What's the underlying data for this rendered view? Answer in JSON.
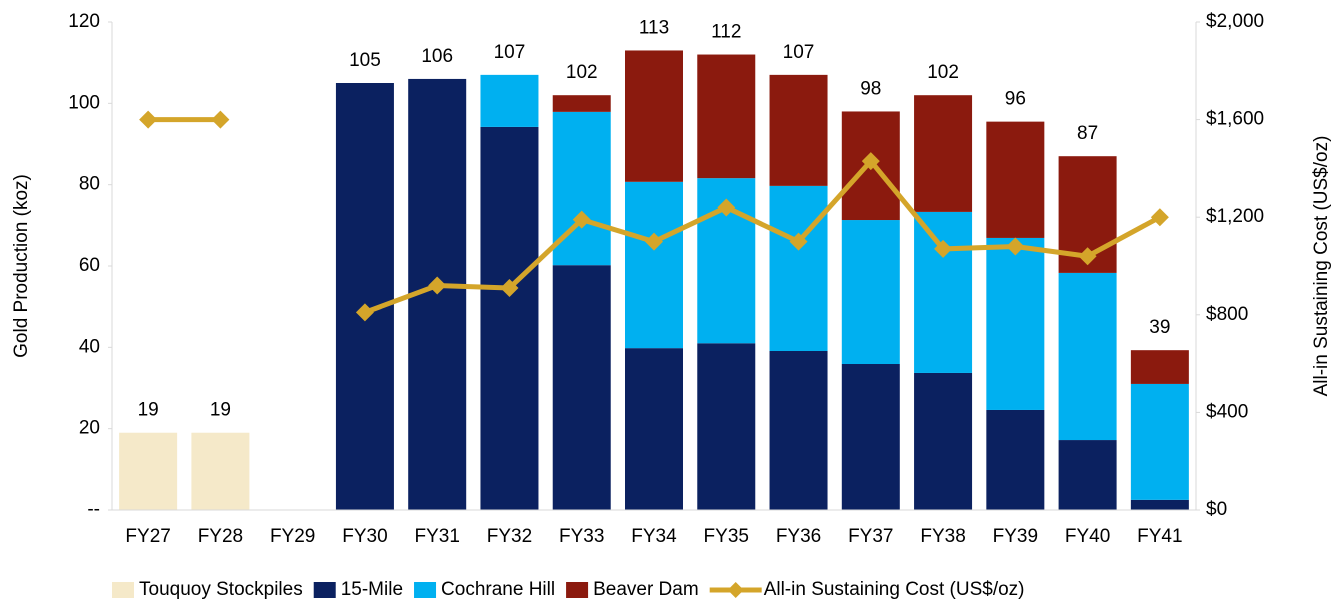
{
  "chart_data": {
    "type": "bar",
    "ylabel": "Gold Production (koz)",
    "y2label": "All-in Sustaining Cost (US$/oz)",
    "categories": [
      "FY27",
      "FY28",
      "FY29",
      "FY30",
      "FY31",
      "FY32",
      "FY33",
      "FY34",
      "FY35",
      "FY36",
      "FY37",
      "FY38",
      "FY39",
      "FY40",
      "FY41"
    ],
    "series": [
      {
        "name": "Touquoy Stockpiles",
        "color": "#f5e9c9",
        "values": [
          19,
          19,
          null,
          null,
          null,
          null,
          null,
          null,
          null,
          null,
          null,
          null,
          null,
          null,
          null
        ]
      },
      {
        "name": "15-Mile",
        "color": "#0b2160",
        "values": [
          null,
          null,
          null,
          105,
          106,
          94.2,
          60.2,
          39.8,
          41,
          39.1,
          35.9,
          33.7,
          24.6,
          17.2,
          2.5
        ]
      },
      {
        "name": "Cochrane Hill",
        "color": "#00b0f0",
        "values": [
          null,
          null,
          null,
          null,
          null,
          12.8,
          37.7,
          40.9,
          40.6,
          40.6,
          35.4,
          39.6,
          42.3,
          41.1,
          28.5
        ]
      },
      {
        "name": "Beaver Dam",
        "color": "#8b1a0e",
        "values": [
          null,
          null,
          null,
          null,
          null,
          null,
          4.1,
          32.3,
          30.4,
          27.3,
          26.7,
          28.7,
          28.6,
          28.7,
          8.3
        ]
      },
      {
        "name": "All-in Sustaining Cost (US$/oz)",
        "type": "line",
        "axis": "y2",
        "color": "#d4a52a",
        "values": [
          1600,
          1600,
          null,
          810,
          920,
          910,
          1190,
          1100,
          1240,
          1100,
          1430,
          1070,
          1080,
          1040,
          1200
        ]
      }
    ],
    "total_labels": [
      19,
      19,
      null,
      105,
      106,
      107,
      102,
      113,
      112,
      107,
      98,
      102,
      96,
      87,
      39
    ],
    "ylim": [
      0,
      120
    ],
    "yticks": [
      {
        "value": 0,
        "label": "--"
      },
      20,
      40,
      60,
      80,
      100,
      120
    ],
    "y2lim": [
      0,
      2000
    ],
    "y2ticks": [
      {
        "value": 0,
        "label": "$0"
      },
      {
        "value": 400,
        "label": "$400"
      },
      {
        "value": 800,
        "label": "$800"
      },
      {
        "value": 1200,
        "label": "$1,200"
      },
      {
        "value": 1600,
        "label": "$1,600"
      },
      {
        "value": 2000,
        "label": "$2,000"
      }
    ],
    "legend": "bottom"
  }
}
